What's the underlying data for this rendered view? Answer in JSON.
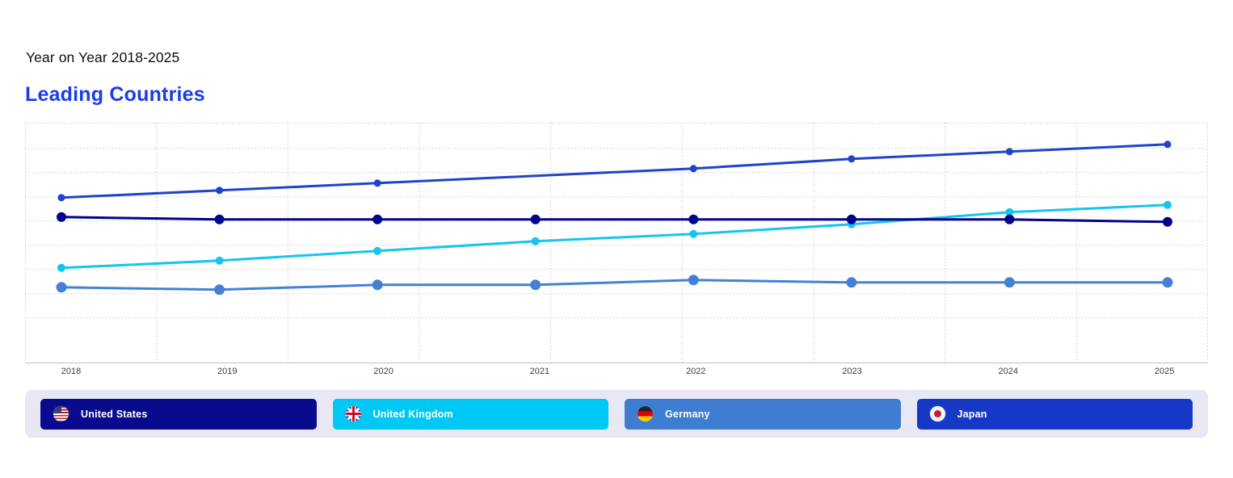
{
  "header": {
    "subtitle": "Year on Year 2018-2025",
    "title": "Leading Countries",
    "title_color": "#1b3de8"
  },
  "chart_data": {
    "type": "line",
    "title": "Leading Countries",
    "xlabel": "",
    "ylabel": "",
    "categories": [
      "2018",
      "2019",
      "2020",
      "2021",
      "2022",
      "2023",
      "2024",
      "2025"
    ],
    "series": [
      {
        "name": "United States",
        "color": "#02028a",
        "point_radius": 6,
        "values": [
          61,
          60,
          60,
          60,
          60,
          60,
          60,
          59
        ],
        "missing_dot_years": []
      },
      {
        "name": "United Kingdom",
        "color": "#15c5f0",
        "point_radius": 5,
        "values": [
          40,
          43,
          47,
          51,
          54,
          58,
          63,
          66
        ],
        "missing_dot_years": []
      },
      {
        "name": "Germany",
        "color": "#4480d6",
        "point_radius": 6.5,
        "values": [
          32,
          31,
          33,
          33,
          35,
          34,
          34,
          34
        ],
        "missing_dot_years": []
      },
      {
        "name": "Japan",
        "color": "#1f44cb",
        "point_radius": 4.5,
        "values": [
          69,
          72,
          75,
          78,
          81,
          85,
          88,
          91
        ],
        "missing_dot_years": [
          "2021"
        ]
      }
    ],
    "ylim": [
      0,
      100
    ],
    "y_axis_labels_visible": false,
    "grid": "dotted",
    "legend_position": "bottom",
    "x_tick_color": "#3a3f4a",
    "grid_color": "#c9c9c9"
  },
  "legend": {
    "items": [
      {
        "label": "United States",
        "flag": "us",
        "color": "#0a0a8e"
      },
      {
        "label": "United Kingdom",
        "flag": "uk",
        "color": "#00c8f4"
      },
      {
        "label": "Germany",
        "flag": "de",
        "color": "#3e7dd1"
      },
      {
        "label": "Japan",
        "flag": "jp",
        "color": "#1539c6"
      }
    ]
  }
}
